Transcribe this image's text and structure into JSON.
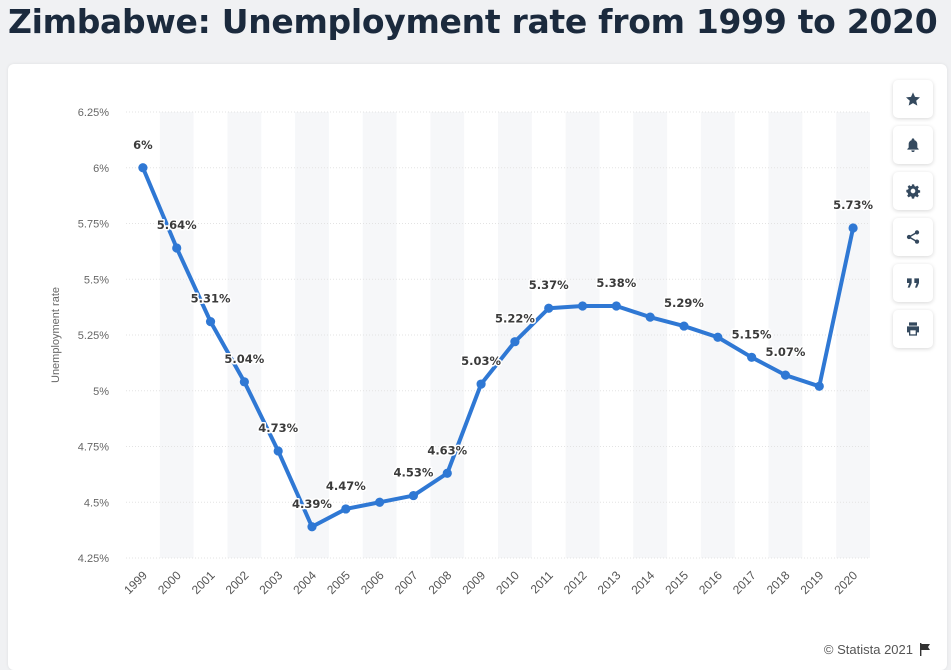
{
  "page": {
    "title": "Zimbabwe: Unemployment rate from 1999 to 2020",
    "footer": "© Statista 2021"
  },
  "sidebar": [
    {
      "icon": "star-icon",
      "name": "favorite-button"
    },
    {
      "icon": "bell-icon",
      "name": "alert-button"
    },
    {
      "icon": "gear-icon",
      "name": "settings-button"
    },
    {
      "icon": "share-icon",
      "name": "share-button"
    },
    {
      "icon": "quote-icon",
      "name": "cite-button"
    },
    {
      "icon": "print-icon",
      "name": "print-button"
    }
  ],
  "footer_icon": "flag-icon",
  "chart_data": {
    "type": "line",
    "ylabel": "Unemployment rate",
    "categories": [
      "1999",
      "2000",
      "2001",
      "2002",
      "2003",
      "2004",
      "2005",
      "2006",
      "2007",
      "2008",
      "2009",
      "2010",
      "2011",
      "2012",
      "2013",
      "2014",
      "2015",
      "2016",
      "2017",
      "2018",
      "2019",
      "2020"
    ],
    "values": [
      6.0,
      5.64,
      5.31,
      5.04,
      4.73,
      4.39,
      4.47,
      4.5,
      4.53,
      4.63,
      5.03,
      5.22,
      5.37,
      5.38,
      5.38,
      5.33,
      5.29,
      5.24,
      5.15,
      5.07,
      5.02,
      5.73
    ],
    "data_labels": [
      "6%",
      "5.64%",
      "5.31%",
      "5.04%",
      "4.73%",
      "4.39%",
      "4.47%",
      "",
      "4.53%",
      "4.63%",
      "5.03%",
      "5.22%",
      "5.37%",
      "",
      "5.38%",
      "",
      "5.29%",
      "",
      "5.15%",
      "5.07%",
      "",
      "5.73%"
    ],
    "yticks": [
      "4.25%",
      "4.5%",
      "4.75%",
      "5%",
      "5.25%",
      "5.5%",
      "5.75%",
      "6%",
      "6.25%"
    ],
    "ylim": [
      4.25,
      6.25
    ],
    "grid": true,
    "line_color": "#2f78d4"
  }
}
